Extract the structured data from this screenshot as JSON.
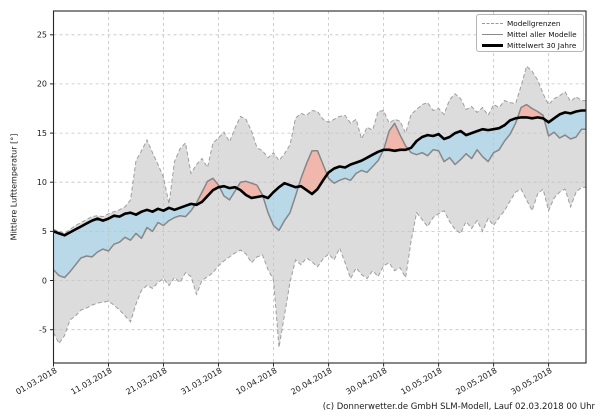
{
  "caption": "(c) Donnerwetter.de GmbH SLM-Modell, Lauf 02.03.2018 00 Uhr",
  "legend": {
    "items": [
      {
        "label": "Modellgrenzen",
        "style": "dashed-gray"
      },
      {
        "label": "Mittel aller Modelle",
        "style": "solid-gray"
      },
      {
        "label": "Mittelwert 30 Jahre",
        "style": "thick-black"
      }
    ]
  },
  "colors": {
    "envelope_fill": "#dcdcdc",
    "envelope_edge": "#9e9e9e",
    "warm_fill": "#f1b6ac",
    "cold_fill": "#b9d8e8",
    "model_line": "#878787",
    "climate_line": "#000000",
    "grid": "#c3c3c3",
    "spine": "#262626",
    "text": "#1a1a1a"
  },
  "chart_data": {
    "type": "line",
    "title": "",
    "xlabel": "",
    "ylabel": "Mittlere Lufttemperatur [°]",
    "ylim": [
      -8.4,
      27.4
    ],
    "grid": true,
    "legend_position": "upper right",
    "x_start_date": "01.03.2018",
    "x_step_days": 1,
    "n_days": 97,
    "ytick_values": [
      -5,
      0,
      5,
      10,
      15,
      20,
      25
    ],
    "xtick_day_index": [
      0,
      10,
      20,
      30,
      40,
      50,
      60,
      70,
      80,
      90
    ],
    "xtick_labels": [
      "01.03.2018",
      "11.03.2018",
      "21.03.2018",
      "31.03.2018",
      "10.04.2018",
      "20.04.2018",
      "30.04.2018",
      "10.05.2018",
      "20.05.2018",
      "30.05.2018"
    ],
    "shading": {
      "between": [
        "model_mean",
        "climate_mean"
      ],
      "above_color": "warm_fill",
      "below_color": "cold_fill"
    },
    "series": [
      {
        "name": "Modellgrenzen (obere Grenze)",
        "role": "upper_bound",
        "values": [
          5.2,
          5.0,
          4.8,
          5.2,
          5.6,
          5.9,
          6.2,
          6.5,
          6.6,
          6.5,
          6.8,
          7.0,
          7.2,
          7.5,
          8.2,
          12.2,
          13.2,
          14.3,
          13.0,
          11.8,
          10.5,
          7.8,
          12.1,
          13.4,
          14.0,
          10.9,
          11.8,
          12.4,
          11.5,
          14.0,
          14.5,
          15.1,
          14.1,
          15.5,
          16.7,
          16.4,
          15.2,
          13.5,
          13.2,
          12.5,
          13.0,
          12.2,
          12.9,
          13.8,
          16.5,
          17.0,
          16.8,
          17.3,
          17.2,
          16.4,
          16.1,
          16.4,
          16.7,
          16.8,
          16.0,
          16.4,
          14.4,
          15.6,
          15.3,
          17.2,
          17.3,
          16.0,
          16.4,
          16.2,
          15.0,
          16.9,
          17.4,
          17.9,
          18.1,
          17.3,
          17.5,
          16.9,
          18.4,
          19.0,
          18.5,
          17.4,
          17.7,
          17.1,
          17.6,
          16.8,
          17.9,
          17.6,
          18.3,
          18.1,
          18.0,
          19.8,
          21.8,
          21.3,
          20.4,
          19.0,
          17.9,
          18.5,
          18.8,
          19.2,
          18.2,
          18.7,
          18.3
        ]
      },
      {
        "name": "Modellgrenzen (untere Grenze)",
        "role": "lower_bound",
        "values": [
          -5.3,
          -6.4,
          -5.6,
          -4.0,
          -3.6,
          -3.0,
          -2.8,
          -2.5,
          -2.3,
          -2.2,
          -2.1,
          -2.5,
          -3.0,
          -3.6,
          -4.2,
          -2.4,
          -1.0,
          -0.5,
          -0.8,
          -0.2,
          0.2,
          -0.5,
          0.3,
          -0.2,
          0.8,
          0.4,
          -1.4,
          0.0,
          0.4,
          0.8,
          1.5,
          2.0,
          2.4,
          2.8,
          3.1,
          2.7,
          1.8,
          2.4,
          2.6,
          1.1,
          0.1,
          -6.8,
          -3.5,
          -0.2,
          2.1,
          1.6,
          2.3,
          1.9,
          1.4,
          2.2,
          2.7,
          2.1,
          3.3,
          1.8,
          0.2,
          1.3,
          0.6,
          0.2,
          1.0,
          0.4,
          1.5,
          1.8,
          1.0,
          1.3,
          0.3,
          4.0,
          6.9,
          6.2,
          5.5,
          6.4,
          6.8,
          7.1,
          6.0,
          5.2,
          4.8,
          6.0,
          5.3,
          6.1,
          5.0,
          6.3,
          5.6,
          6.4,
          7.1,
          8.1,
          9.0,
          9.3,
          8.2,
          7.1,
          8.8,
          9.3,
          7.1,
          8.4,
          9.0,
          9.3,
          7.5,
          9.0,
          9.5
        ]
      },
      {
        "name": "Mittel aller Modelle",
        "role": "model_mean",
        "values": [
          1.1,
          0.5,
          0.3,
          0.9,
          1.6,
          2.3,
          2.5,
          2.4,
          2.9,
          3.2,
          3.0,
          3.7,
          3.9,
          4.4,
          4.1,
          4.8,
          4.3,
          5.4,
          5.0,
          5.9,
          5.6,
          6.1,
          6.4,
          6.6,
          6.5,
          7.1,
          7.9,
          9.0,
          10.1,
          10.4,
          9.7,
          8.6,
          8.2,
          9.1,
          10.0,
          10.1,
          9.9,
          9.7,
          8.7,
          6.9,
          5.6,
          5.1,
          6.1,
          6.9,
          8.6,
          10.4,
          11.9,
          13.2,
          13.2,
          11.8,
          10.4,
          9.9,
          10.2,
          10.4,
          10.2,
          10.9,
          11.2,
          11.0,
          11.6,
          12.2,
          13.3,
          15.2,
          16.0,
          14.8,
          13.7,
          13.0,
          12.8,
          13.0,
          12.7,
          13.3,
          13.2,
          12.1,
          12.5,
          11.8,
          12.3,
          12.9,
          12.4,
          13.3,
          12.6,
          12.1,
          13.0,
          13.3,
          14.2,
          14.9,
          16.0,
          17.6,
          17.9,
          17.5,
          17.2,
          16.8,
          14.7,
          15.1,
          14.5,
          14.8,
          14.4,
          14.6,
          15.4
        ]
      },
      {
        "name": "Mittelwert 30 Jahre",
        "role": "climate_mean",
        "values": [
          5.0,
          4.8,
          4.6,
          4.9,
          5.2,
          5.5,
          5.8,
          6.1,
          6.3,
          6.1,
          6.3,
          6.6,
          6.5,
          6.8,
          6.9,
          6.7,
          7.0,
          7.2,
          7.0,
          7.3,
          7.1,
          7.4,
          7.2,
          7.4,
          7.6,
          7.8,
          7.7,
          8.0,
          8.6,
          9.2,
          9.5,
          9.6,
          9.4,
          9.5,
          9.2,
          8.7,
          8.4,
          8.5,
          8.6,
          8.4,
          9.0,
          9.5,
          9.9,
          9.7,
          9.5,
          9.6,
          9.2,
          8.8,
          9.3,
          10.2,
          11.0,
          11.4,
          11.6,
          11.5,
          11.8,
          12.0,
          12.2,
          12.5,
          12.8,
          13.1,
          13.3,
          13.3,
          13.2,
          13.3,
          13.3,
          13.5,
          14.2,
          14.6,
          14.8,
          14.7,
          14.9,
          14.4,
          14.6,
          15.0,
          15.2,
          14.8,
          15.0,
          15.2,
          15.4,
          15.3,
          15.4,
          15.5,
          15.8,
          16.3,
          16.5,
          16.6,
          16.6,
          16.5,
          16.6,
          16.5,
          16.1,
          16.5,
          16.9,
          17.1,
          17.0,
          17.2,
          17.3
        ]
      }
    ]
  }
}
